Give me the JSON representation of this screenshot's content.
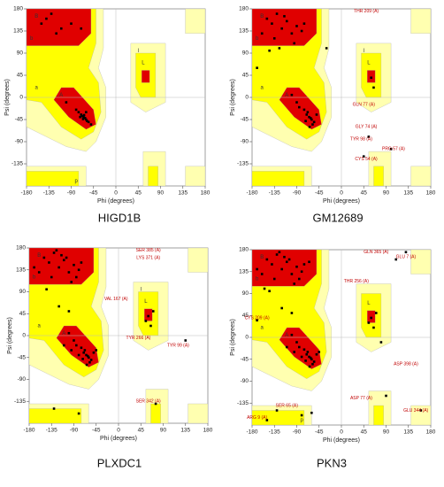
{
  "chart_data": [
    {
      "type": "scatter",
      "caption": "HIGD1B",
      "xlabel": "Phi (degrees)",
      "ylabel": "Psi (degrees)",
      "xlim": [
        -180,
        180
      ],
      "ylim": [
        -180,
        180
      ],
      "xticks": [
        -180,
        -135,
        -90,
        -45,
        0,
        45,
        90,
        135,
        180
      ],
      "yticks": [
        -135,
        -90,
        -45,
        0,
        45,
        90,
        135,
        180
      ],
      "color": "#000000",
      "region_labels": [
        {
          "text": "B",
          "x": -160,
          "y": 165
        },
        {
          "text": "b",
          "x": -170,
          "y": 120
        },
        {
          "text": "A",
          "x": -110,
          "y": 5
        },
        {
          "text": "a",
          "x": -160,
          "y": 20
        },
        {
          "text": "L",
          "x": 55,
          "y": 70
        },
        {
          "text": "l",
          "x": 45,
          "y": 95
        },
        {
          "text": "p",
          "x": -80,
          "y": -170
        }
      ],
      "annotations": [],
      "x": [
        -65,
        -60,
        -70,
        -75,
        -62,
        -58,
        -68,
        -80,
        -55,
        -66,
        -72,
        -64,
        -100,
        -120,
        -140,
        -90,
        -130,
        -150,
        -110,
        -70,
        -60,
        -50
      ],
      "values": [
        -40,
        -45,
        -35,
        -30,
        -42,
        -48,
        -38,
        -25,
        -50,
        -44,
        -40,
        -36,
        -10,
        130,
        160,
        150,
        170,
        150,
        140,
        140,
        -30,
        -55
      ]
    },
    {
      "type": "scatter",
      "caption": "GM12689",
      "xlabel": "Phi (degrees)",
      "ylabel": "Psi (degrees)",
      "xlim": [
        -180,
        180
      ],
      "ylim": [
        -180,
        180
      ],
      "xticks": [
        -180,
        -135,
        -90,
        -45,
        0,
        45,
        90,
        135,
        180
      ],
      "yticks": [
        -135,
        -90,
        -45,
        0,
        45,
        90,
        135,
        180
      ],
      "color": "#000000",
      "region_labels": [
        {
          "text": "B",
          "x": -160,
          "y": 165
        },
        {
          "text": "b",
          "x": -170,
          "y": 120
        },
        {
          "text": "A",
          "x": -110,
          "y": 5
        },
        {
          "text": "a",
          "x": -160,
          "y": 20
        },
        {
          "text": "L",
          "x": 55,
          "y": 70
        },
        {
          "text": "l",
          "x": 45,
          "y": 95
        }
      ],
      "annotations": [
        {
          "text": "THR 209 (A)",
          "x": 50,
          "y": 175
        },
        {
          "text": "GLY 74 (A)",
          "x": 50,
          "y": -60
        },
        {
          "text": "TYR 98 (A)",
          "x": 40,
          "y": -85
        },
        {
          "text": "PRO 57 (A)",
          "x": 105,
          "y": -105
        },
        {
          "text": "CYS 54 (A)",
          "x": 50,
          "y": -125
        },
        {
          "text": "GLN 77 (A)",
          "x": 45,
          "y": -15
        }
      ],
      "x": [
        -150,
        -140,
        -130,
        -120,
        -110,
        -100,
        -90,
        -80,
        -160,
        -135,
        -115,
        -95,
        -75,
        -145,
        -125,
        -65,
        -60,
        -70,
        -55,
        -62,
        -68,
        -75,
        -58,
        -85,
        -90,
        -100,
        -50,
        -64,
        -72,
        60,
        65,
        -170,
        -30,
        45,
        100,
        55
      ],
      "values": [
        160,
        150,
        170,
        140,
        155,
        130,
        145,
        135,
        130,
        120,
        165,
        110,
        150,
        95,
        100,
        -40,
        -45,
        -35,
        -50,
        -42,
        -30,
        -25,
        -55,
        -20,
        -10,
        5,
        -35,
        -60,
        -48,
        40,
        20,
        60,
        100,
        -120,
        -105,
        -80
      ]
    },
    {
      "type": "scatter",
      "caption": "PLXDC1",
      "xlabel": "Phi (degrees)",
      "ylabel": "Psi (degrees)",
      "xlim": [
        -180,
        180
      ],
      "ylim": [
        -180,
        180
      ],
      "xticks": [
        -180,
        -135,
        -90,
        -45,
        0,
        45,
        90,
        135,
        180
      ],
      "yticks": [
        -135,
        -90,
        -45,
        0,
        45,
        90,
        135,
        180
      ],
      "color": "#000000",
      "region_labels": [
        {
          "text": "B",
          "x": -160,
          "y": 165
        },
        {
          "text": "b",
          "x": -170,
          "y": 120
        },
        {
          "text": "A",
          "x": -110,
          "y": 5
        },
        {
          "text": "a",
          "x": -160,
          "y": 20
        },
        {
          "text": "L",
          "x": 55,
          "y": 70
        },
        {
          "text": "l",
          "x": 45,
          "y": 95
        }
      ],
      "annotations": [
        {
          "text": "SER 385 (A)",
          "x": 60,
          "y": 175
        },
        {
          "text": "LYS 371 (A)",
          "x": 60,
          "y": 160
        },
        {
          "text": "VAL 167 (A)",
          "x": -5,
          "y": 75
        },
        {
          "text": "TYR 266 (A)",
          "x": 40,
          "y": -5
        },
        {
          "text": "TYR 99 (A)",
          "x": 120,
          "y": -20
        },
        {
          "text": "SER 342 (A)",
          "x": 60,
          "y": -135
        }
      ],
      "x": [
        -150,
        -140,
        -130,
        -120,
        -110,
        -100,
        -90,
        -80,
        -160,
        -135,
        -115,
        -95,
        -75,
        -145,
        -125,
        -105,
        -85,
        -170,
        -65,
        -60,
        -70,
        -55,
        -62,
        -68,
        -75,
        -58,
        -85,
        -90,
        -100,
        -50,
        -64,
        -72,
        -80,
        -45,
        -95,
        -110,
        60,
        65,
        70,
        55,
        -120,
        -100,
        -130,
        -80,
        135,
        75
      ],
      "values": [
        160,
        150,
        170,
        140,
        155,
        130,
        145,
        135,
        130,
        120,
        165,
        110,
        150,
        95,
        175,
        160,
        120,
        140,
        -40,
        -45,
        -35,
        -50,
        -42,
        -30,
        -25,
        -55,
        -20,
        -10,
        5,
        -35,
        -60,
        -48,
        -40,
        -30,
        -30,
        -20,
        40,
        20,
        50,
        30,
        60,
        50,
        -150,
        -160,
        -10,
        -140
      ]
    },
    {
      "type": "scatter",
      "caption": "PKN3",
      "xlabel": "Phi (degrees)",
      "ylabel": "Psi (degrees)",
      "xlim": [
        -180,
        180
      ],
      "ylim": [
        -180,
        180
      ],
      "xticks": [
        -180,
        -135,
        -90,
        -45,
        0,
        45,
        90,
        135,
        180
      ],
      "yticks": [
        -135,
        -90,
        -45,
        0,
        45,
        90,
        135,
        180
      ],
      "color": "#000000",
      "region_labels": [
        {
          "text": "B",
          "x": -160,
          "y": 165
        },
        {
          "text": "b",
          "x": -170,
          "y": 120
        },
        {
          "text": "A",
          "x": -110,
          "y": 5
        },
        {
          "text": "a",
          "x": -160,
          "y": 20
        },
        {
          "text": "L",
          "x": 55,
          "y": 70
        },
        {
          "text": "p",
          "x": -80,
          "y": -170
        }
      ],
      "annotations": [
        {
          "text": "GLN 365 (A)",
          "x": 70,
          "y": 175
        },
        {
          "text": "GLU 7 (A)",
          "x": 130,
          "y": 165
        },
        {
          "text": "THR 256 (A)",
          "x": 30,
          "y": 115
        },
        {
          "text": "CYS 209 (A)",
          "x": -170,
          "y": 40
        },
        {
          "text": "ASP 398 (A)",
          "x": 130,
          "y": -55
        },
        {
          "text": "ASP 77 (A)",
          "x": 40,
          "y": -125
        },
        {
          "text": "SER 65 (A)",
          "x": -110,
          "y": -140
        },
        {
          "text": "GLU 344 (A)",
          "x": 150,
          "y": -150
        },
        {
          "text": "ARG 9 (A)",
          "x": -170,
          "y": -165
        }
      ],
      "x": [
        -150,
        -140,
        -130,
        -120,
        -110,
        -100,
        -90,
        -80,
        -160,
        -135,
        -115,
        -95,
        -75,
        -145,
        -125,
        -105,
        -85,
        -170,
        -65,
        -155,
        -65,
        -60,
        -70,
        -55,
        -62,
        -68,
        -75,
        -58,
        -85,
        -90,
        -100,
        -50,
        -64,
        -72,
        -80,
        -45,
        -95,
        -110,
        60,
        65,
        70,
        55,
        80,
        -120,
        -100,
        -130,
        -80,
        -150,
        -60,
        110,
        130,
        160,
        -170,
        90
      ],
      "values": [
        160,
        150,
        170,
        140,
        155,
        130,
        145,
        135,
        130,
        120,
        165,
        110,
        150,
        95,
        175,
        160,
        120,
        140,
        155,
        100,
        -40,
        -45,
        -35,
        -50,
        -42,
        -30,
        -25,
        -55,
        -20,
        -10,
        5,
        -35,
        -60,
        -48,
        -40,
        -30,
        -30,
        -20,
        40,
        20,
        50,
        30,
        -10,
        60,
        50,
        -150,
        -160,
        -170,
        -155,
        160,
        175,
        -150,
        35,
        -120
      ]
    }
  ]
}
